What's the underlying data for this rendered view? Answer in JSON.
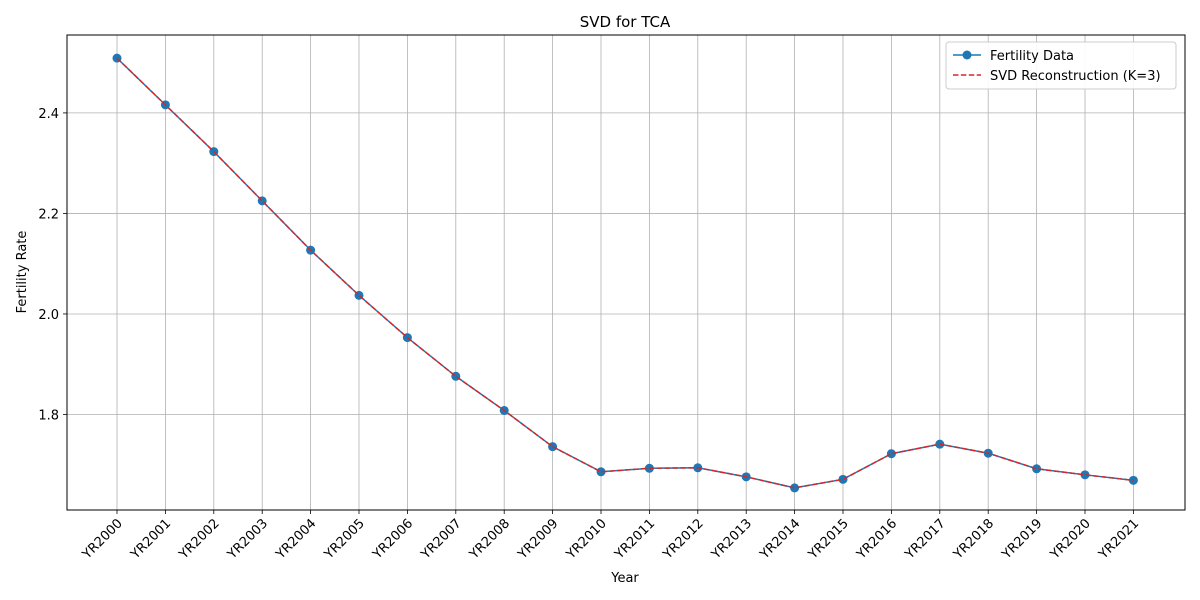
{
  "chart_data": {
    "type": "line",
    "title": "SVD for TCA",
    "xlabel": "Year",
    "ylabel": "Fertility Rate",
    "categories": [
      "YR2000",
      "YR2001",
      "YR2002",
      "YR2003",
      "YR2004",
      "YR2005",
      "YR2006",
      "YR2007",
      "YR2008",
      "YR2009",
      "YR2010",
      "YR2011",
      "YR2012",
      "YR2013",
      "YR2014",
      "YR2015",
      "YR2016",
      "YR2017",
      "YR2018",
      "YR2019",
      "YR2020",
      "YR2021"
    ],
    "ylim": [
      1.61,
      2.555
    ],
    "yticks": [
      {
        "value": 1.8,
        "label": "1.8"
      },
      {
        "value": 2.0,
        "label": "2.0"
      },
      {
        "value": 2.2,
        "label": "2.2"
      },
      {
        "value": 2.4,
        "label": "2.4"
      }
    ],
    "grid": true,
    "legend_position": "top-right",
    "series": [
      {
        "name": "Fertility Data",
        "style": "solid-line-with-circle-markers",
        "color": "#1f77b4",
        "values": [
          2.509,
          2.416,
          2.323,
          2.225,
          2.127,
          2.037,
          1.953,
          1.876,
          1.808,
          1.736,
          1.686,
          1.693,
          1.694,
          1.676,
          1.654,
          1.671,
          1.722,
          1.741,
          1.723,
          1.692,
          1.68,
          1.669
        ]
      },
      {
        "name": "SVD Reconstruction (K=3)",
        "style": "dashed-line",
        "color": "#d62728",
        "values": [
          2.509,
          2.416,
          2.323,
          2.225,
          2.127,
          2.037,
          1.953,
          1.876,
          1.808,
          1.736,
          1.686,
          1.693,
          1.694,
          1.676,
          1.654,
          1.671,
          1.722,
          1.741,
          1.723,
          1.692,
          1.68,
          1.669
        ]
      }
    ]
  }
}
